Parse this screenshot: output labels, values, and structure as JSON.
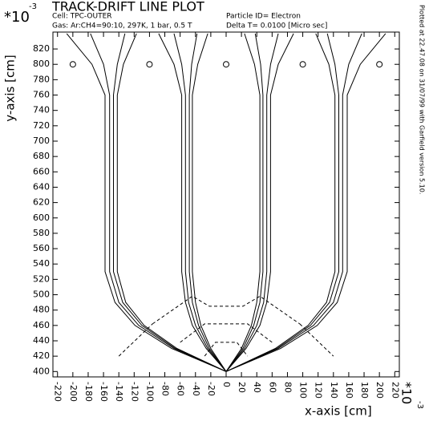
{
  "chart_data": {
    "type": "line",
    "title": "TRACK-DRIFT LINE PLOT",
    "cell": "Cell: TPC-OUTER",
    "gas": "Gas: Ar:CH4=90:10, 297K, 1 bar, 0.5 T",
    "particle": "Particle ID= Electron",
    "delta_t": "Delta T=    0.0100 [Micro sec]",
    "plotted": "Plotted at 22.47.08 on 31/07/99 with Garfield version 5.10.",
    "x_label": "x-axis [cm]",
    "y_label": "y-axis [cm]",
    "x_multiplier": "*10",
    "x_exponent": "-3",
    "y_multiplier": "*10",
    "y_exponent": "-3",
    "xlim": [
      -226,
      226
    ],
    "ylim": [
      393,
      842
    ],
    "xticks": [
      -220,
      -200,
      -180,
      -160,
      -140,
      -120,
      -100,
      -80,
      -60,
      -40,
      -20,
      0,
      20,
      40,
      60,
      80,
      100,
      120,
      140,
      160,
      180,
      200,
      220
    ],
    "yticks": [
      400,
      420,
      440,
      460,
      480,
      500,
      520,
      540,
      560,
      580,
      600,
      620,
      640,
      660,
      680,
      700,
      720,
      740,
      760,
      780,
      800,
      820
    ],
    "color": "#000000",
    "series": [
      {
        "x": [
          0,
          -71,
          -119,
          -145,
          -158,
          -158,
          -175,
          -208
        ],
        "values": [
          400,
          430,
          460,
          490,
          530,
          760,
          800,
          840
        ]
      },
      {
        "x": [
          0,
          -68,
          -114,
          -140,
          -152,
          -152,
          -160,
          -177
        ],
        "values": [
          400,
          430,
          460,
          490,
          530,
          760,
          800,
          840
        ]
      },
      {
        "x": [
          0,
          -66,
          -110,
          -135,
          -147,
          -147,
          -142,
          -132
        ],
        "values": [
          400,
          430,
          460,
          490,
          530,
          760,
          800,
          840
        ]
      },
      {
        "x": [
          0,
          -64,
          -107,
          -131,
          -142,
          -142,
          -134,
          -117
        ],
        "values": [
          400,
          430,
          460,
          490,
          530,
          760,
          800,
          840
        ]
      },
      {
        "x": [
          0,
          -26,
          -44,
          -53,
          -58,
          -58,
          -68,
          -88
        ],
        "values": [
          400,
          430,
          460,
          490,
          530,
          760,
          800,
          840
        ]
      },
      {
        "x": [
          0,
          -24,
          -40,
          -49,
          -53,
          -53,
          -58,
          -68
        ],
        "values": [
          400,
          430,
          460,
          490,
          530,
          760,
          800,
          840
        ]
      },
      {
        "x": [
          0,
          -22,
          -36,
          -44,
          -48,
          -48,
          -45,
          -38
        ],
        "values": [
          400,
          430,
          460,
          490,
          530,
          760,
          800,
          840
        ]
      },
      {
        "x": [
          0,
          -20,
          -33,
          -40,
          -44,
          -44,
          -37,
          -24
        ],
        "values": [
          400,
          430,
          460,
          490,
          530,
          760,
          800,
          840
        ]
      },
      {
        "x": [
          0,
          20,
          33,
          40,
          44,
          44,
          37,
          24
        ],
        "values": [
          400,
          430,
          460,
          490,
          530,
          760,
          800,
          840
        ]
      },
      {
        "x": [
          0,
          22,
          36,
          44,
          48,
          48,
          45,
          38
        ],
        "values": [
          400,
          430,
          460,
          490,
          530,
          760,
          800,
          840
        ]
      },
      {
        "x": [
          0,
          24,
          40,
          49,
          53,
          53,
          58,
          68
        ],
        "values": [
          400,
          430,
          460,
          490,
          530,
          760,
          800,
          840
        ]
      },
      {
        "x": [
          0,
          26,
          44,
          53,
          58,
          58,
          68,
          88
        ],
        "values": [
          400,
          430,
          460,
          490,
          530,
          760,
          800,
          840
        ]
      },
      {
        "x": [
          0,
          64,
          107,
          131,
          142,
          142,
          134,
          117
        ],
        "values": [
          400,
          430,
          460,
          490,
          530,
          760,
          800,
          840
        ]
      },
      {
        "x": [
          0,
          66,
          110,
          135,
          147,
          147,
          142,
          132
        ],
        "values": [
          400,
          430,
          460,
          490,
          530,
          760,
          800,
          840
        ]
      },
      {
        "x": [
          0,
          68,
          114,
          140,
          152,
          152,
          160,
          177
        ],
        "values": [
          400,
          430,
          460,
          490,
          530,
          760,
          800,
          840
        ]
      },
      {
        "x": [
          0,
          71,
          119,
          145,
          158,
          158,
          175,
          208
        ],
        "values": [
          400,
          430,
          460,
          490,
          530,
          760,
          800,
          840
        ]
      }
    ],
    "isochrones": {
      "style": "dashed",
      "lines": [
        {
          "x": [
            -96,
            -44,
            -22,
            22,
            44,
            96
          ],
          "values": [
            462,
            498,
            485,
            485,
            498,
            462
          ]
        },
        {
          "x": [
            -60,
            -28,
            28,
            60
          ],
          "values": [
            438,
            462,
            462,
            438
          ]
        },
        {
          "x": [
            -28,
            -14,
            14,
            28
          ],
          "values": [
            420,
            438,
            438,
            420
          ]
        },
        {
          "x": [
            -140,
            -96
          ],
          "values": [
            420,
            462
          ]
        },
        {
          "x": [
            96,
            140
          ],
          "values": [
            462,
            420
          ]
        }
      ]
    },
    "wires": {
      "x": [
        -200,
        -100,
        0,
        100,
        200
      ],
      "values": [
        800,
        800,
        800,
        800,
        800
      ]
    }
  }
}
